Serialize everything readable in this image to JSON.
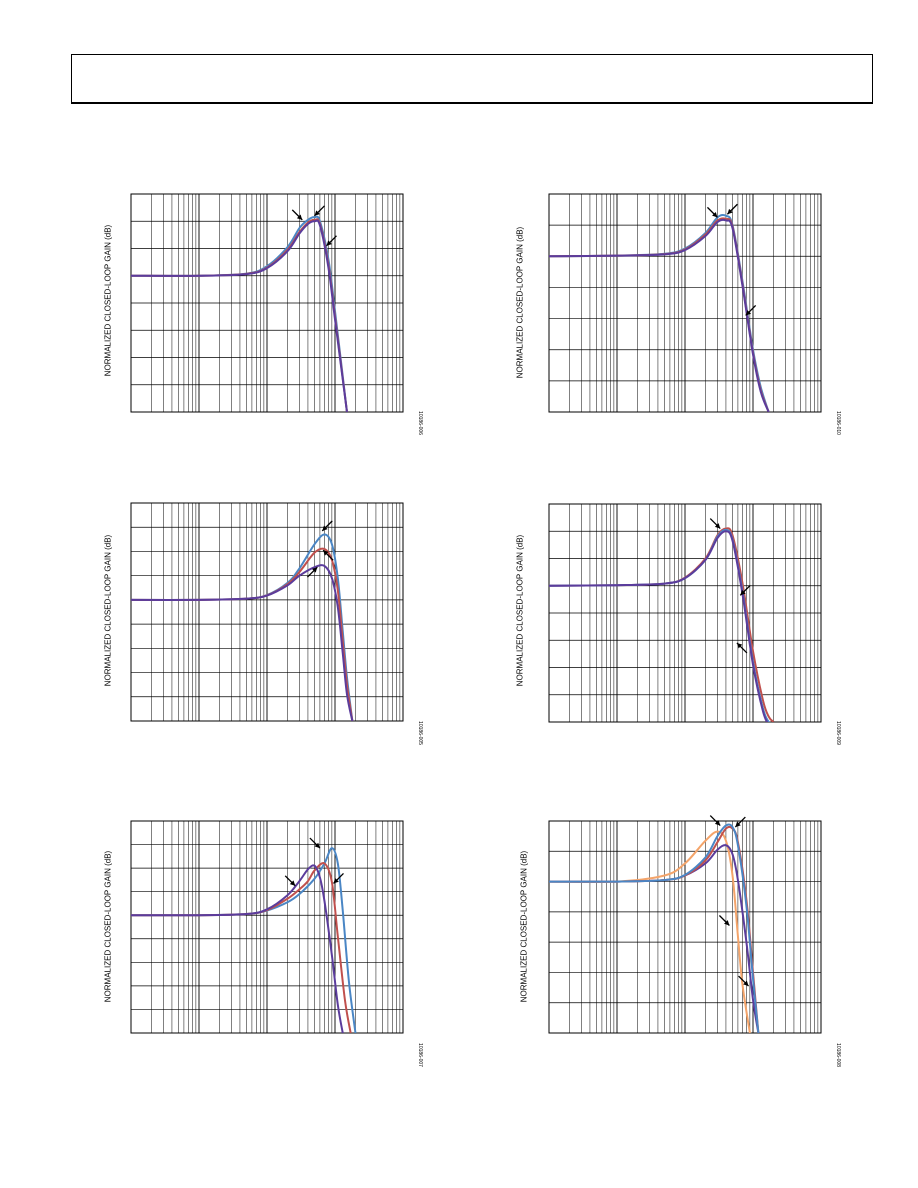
{
  "page": {
    "header_text": ""
  },
  "colors": {
    "blue": "#4a86c5",
    "red": "#c0504d",
    "purple": "#5b3c9c",
    "orange": "#f4a46a",
    "grid": "#000000"
  },
  "icons": [
    "arrow-icon"
  ],
  "chart_data": [
    {
      "id": "panel-1",
      "type": "line",
      "fig_id": "10186-006",
      "ylabel": "NORMALIZED CLOSED-LOOP GAIN (dB)",
      "xscale": "log",
      "xlim": [
        0.001,
        10
      ],
      "ylim": [
        -5,
        3
      ],
      "grid": true,
      "series": [
        {
          "color": "blue",
          "x": [
            0.001,
            0.01,
            0.05,
            0.1,
            0.2,
            0.3,
            0.4,
            0.5,
            0.6,
            0.8,
            1,
            1.5
          ],
          "y": [
            0,
            0,
            0.08,
            0.35,
            1.05,
            1.75,
            2.05,
            2.15,
            2.0,
            0.6,
            -1.3,
            -5
          ]
        },
        {
          "color": "red",
          "x": [
            0.001,
            0.01,
            0.05,
            0.1,
            0.2,
            0.3,
            0.4,
            0.5,
            0.6,
            0.8,
            1,
            1.5
          ],
          "y": [
            0,
            0,
            0.07,
            0.3,
            0.95,
            1.6,
            1.95,
            2.05,
            1.9,
            0.4,
            -1.5,
            -5
          ]
        },
        {
          "color": "purple",
          "x": [
            0.001,
            0.01,
            0.05,
            0.1,
            0.2,
            0.3,
            0.4,
            0.5,
            0.6,
            0.8,
            1,
            1.5
          ],
          "y": [
            0,
            0,
            0.06,
            0.28,
            0.9,
            1.55,
            1.9,
            2.0,
            1.85,
            0.3,
            -1.6,
            -5
          ]
        }
      ],
      "arrows": [
        {
          "x": 0.33,
          "y": 2.05,
          "from": "up-left"
        },
        {
          "x": 0.5,
          "y": 2.2,
          "from": "up-right"
        },
        {
          "x": 0.75,
          "y": 1.1,
          "from": "up-right"
        }
      ]
    },
    {
      "id": "panel-2",
      "type": "line",
      "fig_id": "10186-010",
      "ylabel": "NORMALIZED CLOSED-LOOP GAIN (dB)",
      "xscale": "log",
      "xlim": [
        0.001,
        10
      ],
      "ylim": [
        -5,
        2
      ],
      "grid": true,
      "series": [
        {
          "color": "blue",
          "x": [
            0.001,
            0.01,
            0.05,
            0.1,
            0.2,
            0.3,
            0.4,
            0.5,
            0.7,
            1,
            1.3,
            1.7
          ],
          "y": [
            0,
            0.02,
            0.08,
            0.25,
            0.75,
            1.25,
            1.3,
            1.0,
            -0.8,
            -3.0,
            -4.2,
            -5
          ]
        },
        {
          "color": "red",
          "x": [
            0.001,
            0.01,
            0.05,
            0.1,
            0.2,
            0.3,
            0.4,
            0.5,
            0.7,
            1,
            1.3,
            1.7
          ],
          "y": [
            0,
            0.02,
            0.07,
            0.22,
            0.7,
            1.15,
            1.2,
            0.95,
            -0.9,
            -3.1,
            -4.3,
            -5
          ]
        },
        {
          "color": "purple",
          "x": [
            0.001,
            0.01,
            0.05,
            0.1,
            0.2,
            0.3,
            0.4,
            0.5,
            0.7,
            1,
            1.3,
            1.7
          ],
          "y": [
            0,
            0.02,
            0.06,
            0.2,
            0.65,
            1.1,
            1.15,
            0.9,
            -0.95,
            -3.15,
            -4.35,
            -5
          ]
        }
      ],
      "arrows": [
        {
          "x": 0.3,
          "y": 1.25,
          "from": "up-left"
        },
        {
          "x": 0.42,
          "y": 1.35,
          "from": "up-right"
        },
        {
          "x": 0.78,
          "y": -1.9,
          "from": "up-right"
        }
      ]
    },
    {
      "id": "panel-3",
      "type": "line",
      "fig_id": "10186-005",
      "ylabel": "NORMALIZED CLOSED-LOOP GAIN (dB)",
      "xscale": "log",
      "xlim": [
        0.001,
        10
      ],
      "ylim": [
        -5,
        4
      ],
      "grid": true,
      "series": [
        {
          "color": "blue",
          "x": [
            0.001,
            0.01,
            0.05,
            0.1,
            0.2,
            0.3,
            0.5,
            0.7,
            0.9,
            1.1,
            1.3,
            1.5,
            1.8
          ],
          "y": [
            0,
            0,
            0.05,
            0.2,
            0.7,
            1.3,
            2.3,
            2.7,
            2.3,
            0.9,
            -1.3,
            -3.2,
            -5
          ]
        },
        {
          "color": "red",
          "x": [
            0.001,
            0.01,
            0.05,
            0.1,
            0.2,
            0.3,
            0.5,
            0.7,
            0.9,
            1.1,
            1.3,
            1.5,
            1.8
          ],
          "y": [
            0,
            0,
            0.05,
            0.19,
            0.65,
            1.15,
            1.95,
            2.1,
            1.65,
            0.4,
            -1.7,
            -3.5,
            -5
          ]
        },
        {
          "color": "purple",
          "x": [
            0.001,
            0.01,
            0.05,
            0.1,
            0.2,
            0.3,
            0.5,
            0.7,
            0.9,
            1.1,
            1.3,
            1.5,
            1.8
          ],
          "y": [
            0,
            0,
            0.05,
            0.18,
            0.6,
            1.0,
            1.35,
            1.4,
            0.9,
            -0.3,
            -2.2,
            -3.9,
            -5
          ]
        }
      ],
      "arrows": [
        {
          "x": 0.65,
          "y": 2.85,
          "from": "up-right"
        },
        {
          "x": 0.67,
          "y": 2.05,
          "from": "down-right"
        },
        {
          "x": 0.55,
          "y": 1.35,
          "from": "down-left"
        }
      ]
    },
    {
      "id": "panel-4",
      "type": "line",
      "fig_id": "10186-009",
      "ylabel": "NORMALIZED CLOSED-LOOP GAIN (dB)",
      "xscale": "log",
      "xlim": [
        0.001,
        10
      ],
      "ylim": [
        -5,
        3
      ],
      "grid": true,
      "series": [
        {
          "color": "red",
          "x": [
            0.001,
            0.01,
            0.05,
            0.1,
            0.2,
            0.3,
            0.4,
            0.5,
            0.7,
            1,
            1.4,
            1.7,
            2
          ],
          "y": [
            0,
            0.02,
            0.08,
            0.3,
            1.0,
            1.85,
            2.1,
            1.85,
            0.1,
            -2.4,
            -4.2,
            -4.8,
            -5
          ]
        },
        {
          "color": "blue",
          "x": [
            0.001,
            0.01,
            0.05,
            0.1,
            0.2,
            0.3,
            0.4,
            0.5,
            0.7,
            1,
            1.4,
            1.7,
            2
          ],
          "y": [
            0,
            0.02,
            0.08,
            0.28,
            0.95,
            1.8,
            2.05,
            1.7,
            -0.2,
            -2.8,
            -4.5,
            -5,
            -5.2
          ]
        },
        {
          "color": "purple",
          "x": [
            0.001,
            0.01,
            0.05,
            0.1,
            0.2,
            0.3,
            0.4,
            0.5,
            0.7,
            1,
            1.4,
            1.7,
            2
          ],
          "y": [
            0,
            0.02,
            0.08,
            0.28,
            0.95,
            1.75,
            2.0,
            1.65,
            -0.3,
            -2.9,
            -4.6,
            -5.1,
            -5.3
          ]
        }
      ],
      "arrows": [
        {
          "x": 0.33,
          "y": 2.1,
          "from": "up-left"
        },
        {
          "x": 0.65,
          "y": -0.35,
          "from": "up-right"
        },
        {
          "x": 0.58,
          "y": -2.1,
          "from": "down-right"
        }
      ]
    },
    {
      "id": "panel-5",
      "type": "line",
      "fig_id": "10186-007",
      "ylabel": "NORMALIZED CLOSED-LOOP GAIN (dB)",
      "xscale": "log",
      "xlim": [
        0.001,
        10
      ],
      "ylim": [
        -5,
        4
      ],
      "grid": true,
      "series": [
        {
          "color": "blue",
          "x": [
            0.001,
            0.01,
            0.05,
            0.1,
            0.2,
            0.3,
            0.5,
            0.7,
            0.9,
            1.1,
            1.3,
            1.6,
            2
          ],
          "y": [
            0,
            0,
            0.05,
            0.2,
            0.55,
            0.9,
            1.55,
            2.2,
            2.85,
            2.2,
            0.2,
            -2.8,
            -5
          ]
        },
        {
          "color": "red",
          "x": [
            0.001,
            0.01,
            0.05,
            0.1,
            0.2,
            0.3,
            0.4,
            0.5,
            0.7,
            0.9,
            1.1,
            1.4,
            1.7
          ],
          "y": [
            0,
            0,
            0.05,
            0.22,
            0.7,
            1.1,
            1.45,
            1.9,
            2.2,
            1.4,
            -0.9,
            -3.6,
            -5
          ]
        },
        {
          "color": "purple",
          "x": [
            0.001,
            0.01,
            0.05,
            0.1,
            0.2,
            0.3,
            0.4,
            0.5,
            0.6,
            0.7,
            0.9,
            1.1,
            1.3
          ],
          "y": [
            0,
            0,
            0.05,
            0.25,
            0.85,
            1.45,
            1.95,
            2.1,
            1.6,
            0.6,
            -1.7,
            -3.8,
            -5
          ]
        }
      ],
      "arrows": [
        {
          "x": 0.26,
          "y": 1.25,
          "from": "up-left"
        },
        {
          "x": 0.6,
          "y": 2.85,
          "from": "up-left"
        },
        {
          "x": 0.95,
          "y": 1.35,
          "from": "up-right"
        }
      ]
    },
    {
      "id": "panel-6",
      "type": "line",
      "fig_id": "10186-008",
      "ylabel": "NORMALIZED CLOSED-LOOP GAIN (dB)",
      "xscale": "log",
      "xlim": [
        0.001,
        10
      ],
      "ylim": [
        -5,
        2
      ],
      "grid": true,
      "series": [
        {
          "color": "orange",
          "x": [
            0.001,
            0.01,
            0.05,
            0.1,
            0.2,
            0.3,
            0.4,
            0.5,
            0.6,
            0.7,
            0.9
          ],
          "y": [
            0,
            0,
            0.2,
            0.6,
            1.35,
            1.65,
            1.35,
            0.2,
            -1.8,
            -3.4,
            -5
          ]
        },
        {
          "color": "purple",
          "x": [
            0.001,
            0.01,
            0.05,
            0.1,
            0.2,
            0.3,
            0.4,
            0.5,
            0.6,
            0.8,
            1,
            1.2
          ],
          "y": [
            0,
            0,
            0.05,
            0.2,
            0.6,
            1.05,
            1.2,
            0.9,
            0.05,
            -2.0,
            -3.9,
            -5
          ]
        },
        {
          "color": "red",
          "x": [
            0.001,
            0.01,
            0.05,
            0.1,
            0.2,
            0.3,
            0.4,
            0.5,
            0.6,
            0.8,
            1,
            1.2
          ],
          "y": [
            0,
            0,
            0.05,
            0.2,
            0.7,
            1.3,
            1.75,
            1.75,
            1.3,
            -0.6,
            -3.0,
            -5
          ]
        },
        {
          "color": "blue",
          "x": [
            0.001,
            0.01,
            0.05,
            0.1,
            0.2,
            0.3,
            0.4,
            0.5,
            0.6,
            0.8,
            1,
            1.2
          ],
          "y": [
            0,
            0,
            0.05,
            0.22,
            0.8,
            1.5,
            1.85,
            1.8,
            1.2,
            -0.8,
            -3.2,
            -5
          ]
        }
      ],
      "arrows": [
        {
          "x": 0.33,
          "y": 1.85,
          "from": "up-left"
        },
        {
          "x": 0.55,
          "y": 1.8,
          "from": "up-right"
        },
        {
          "x": 0.45,
          "y": -1.45,
          "from": "up-left"
        },
        {
          "x": 0.86,
          "y": -3.45,
          "from": "up-left"
        }
      ]
    }
  ]
}
